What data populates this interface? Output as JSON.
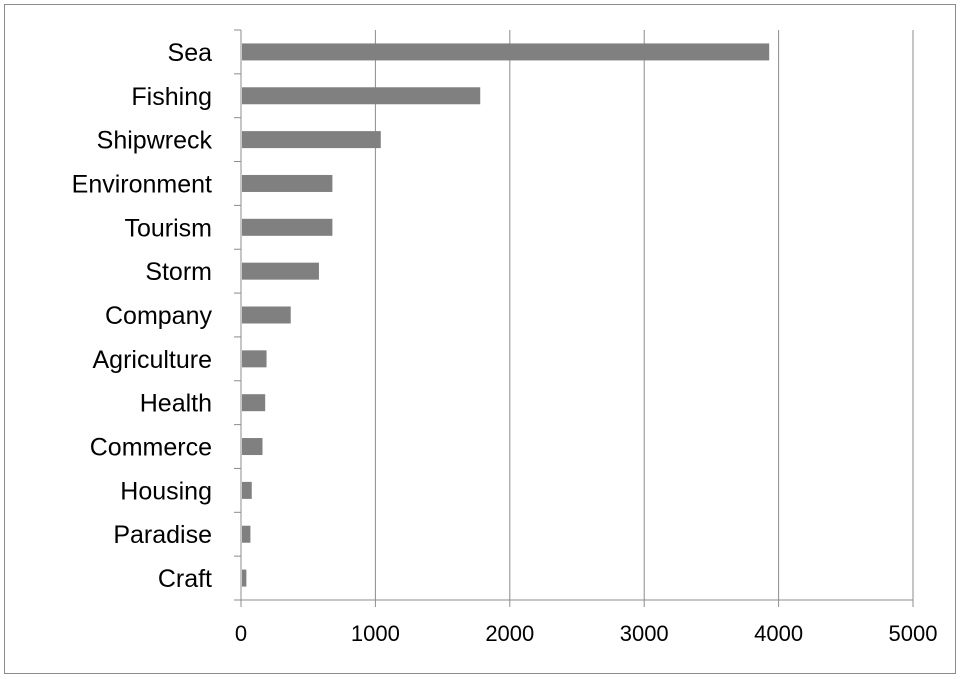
{
  "chart_data": {
    "type": "bar",
    "orientation": "horizontal",
    "categories": [
      "Sea",
      "Fishing",
      "Shipwreck",
      "Environment",
      "Tourism",
      "Storm",
      "Company",
      "Agriculture",
      "Health",
      "Commerce",
      "Housing",
      "Paradise",
      "Craft"
    ],
    "values": [
      3930,
      1780,
      1040,
      680,
      680,
      580,
      370,
      190,
      180,
      160,
      80,
      70,
      40
    ],
    "xlim": [
      0,
      5000
    ],
    "xticks": [
      "0",
      "1000",
      "2000",
      "3000",
      "4000",
      "5000"
    ],
    "title": "",
    "xlabel": "",
    "ylabel": "",
    "grid": "vertical",
    "legend": "none",
    "colors": {
      "bar": "#808080",
      "grid": "#8c8c8c",
      "axis": "#8c8c8c",
      "frame": "#8c8c8c"
    }
  }
}
